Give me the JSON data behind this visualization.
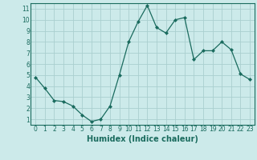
{
  "x": [
    0,
    1,
    2,
    3,
    4,
    5,
    6,
    7,
    8,
    9,
    10,
    11,
    12,
    13,
    14,
    15,
    16,
    17,
    18,
    19,
    20,
    21,
    22,
    23
  ],
  "y": [
    4.8,
    3.8,
    2.7,
    2.6,
    2.2,
    1.4,
    0.8,
    1.0,
    2.2,
    5.0,
    8.0,
    9.8,
    11.3,
    9.3,
    8.8,
    10.0,
    10.2,
    6.4,
    7.2,
    7.2,
    8.0,
    7.3,
    5.1,
    4.6
  ],
  "line_color": "#1a6b5e",
  "marker": "D",
  "marker_size": 2,
  "bg_color": "#cceaea",
  "grid_color": "#aacfcf",
  "xlabel": "Humidex (Indice chaleur)",
  "xlim": [
    -0.5,
    23.5
  ],
  "ylim": [
    0.5,
    11.5
  ],
  "xticks": [
    0,
    1,
    2,
    3,
    4,
    5,
    6,
    7,
    8,
    9,
    10,
    11,
    12,
    13,
    14,
    15,
    16,
    17,
    18,
    19,
    20,
    21,
    22,
    23
  ],
  "yticks": [
    1,
    2,
    3,
    4,
    5,
    6,
    7,
    8,
    9,
    10,
    11
  ],
  "tick_color": "#1a6b5e",
  "label_fontsize": 5.5,
  "xlabel_fontsize": 7,
  "xlabel_fontweight": "bold",
  "linewidth": 0.9
}
